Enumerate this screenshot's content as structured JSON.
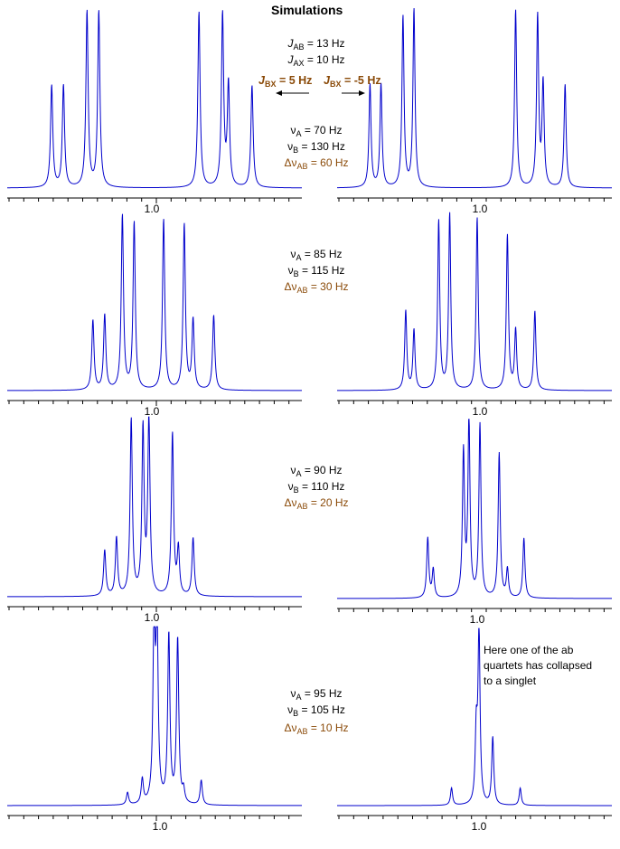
{
  "title": "Simulations",
  "params": {
    "jab": "= 13 Hz",
    "jax": "= 10 Hz",
    "jbx_left": "= 5 Hz",
    "jbx_right": "= -5 Hz"
  },
  "rows": [
    {
      "va": "= 70 Hz",
      "vb": "= 130 Hz",
      "dv": "= 60 Hz"
    },
    {
      "va": "= 85 Hz",
      "vb": "= 115 Hz",
      "dv": "= 30 Hz"
    },
    {
      "va": "= 90 Hz",
      "vb": "= 110 Hz",
      "dv": "= 20 Hz"
    },
    {
      "va": "= 95 Hz",
      "vb": "= 105 Hz",
      "dv": "= 10 Hz"
    }
  ],
  "note": [
    "Here one of the ab",
    "quartets has collapsed",
    "to a singlet"
  ],
  "colors": {
    "trace": "#0000cc",
    "accent": "#8a4a08",
    "axis": "#000000"
  },
  "chart_data": [
    {
      "type": "line",
      "panel": "row1-left",
      "x_tick_label": "1.0",
      "peaks_x": [
        0.66,
        0.7,
        0.78,
        0.82,
        1.16,
        1.24,
        1.26,
        1.34
      ],
      "peaks_h": [
        0.58,
        0.58,
        1.0,
        1.0,
        1.0,
        0.98,
        0.58,
        0.58
      ]
    },
    {
      "type": "line",
      "panel": "row1-right",
      "x_tick_label": "1.0",
      "peaks_x": [
        0.6,
        0.64,
        0.72,
        0.76,
        1.13,
        1.21,
        1.23,
        1.31
      ],
      "peaks_h": [
        0.58,
        0.58,
        0.96,
        1.0,
        1.0,
        0.96,
        0.58,
        0.58
      ]
    },
    {
      "type": "line",
      "panel": "row2-left",
      "x_tick_label": "1.0",
      "peaks_x": [
        0.8,
        0.84,
        0.9,
        0.94,
        1.04,
        1.11,
        1.14,
        1.21
      ],
      "peaks_h": [
        0.4,
        0.43,
        1.0,
        0.96,
        0.98,
        0.95,
        0.4,
        0.43
      ]
    },
    {
      "type": "line",
      "panel": "row2-right",
      "x_tick_label": "1.0",
      "peaks_x": [
        0.73,
        0.76,
        0.85,
        0.89,
        0.99,
        1.1,
        1.13,
        1.2
      ],
      "peaks_h": [
        0.45,
        0.34,
        0.96,
        1.0,
        0.98,
        0.88,
        0.34,
        0.45
      ]
    },
    {
      "type": "line",
      "panel": "row3-left",
      "x_tick_label": "1.0",
      "peaks_x": [
        0.84,
        0.88,
        0.93,
        0.97,
        0.99,
        1.07,
        1.09,
        1.14
      ],
      "peaks_h": [
        0.26,
        0.33,
        1.0,
        0.94,
        1.0,
        0.92,
        0.26,
        0.33
      ]
    },
    {
      "type": "line",
      "panel": "row3-right",
      "x_tick_label": "1.0",
      "peaks_x": [
        0.82,
        0.84,
        0.95,
        0.97,
        1.01,
        1.08,
        1.11,
        1.17
      ],
      "peaks_h": [
        0.34,
        0.16,
        0.82,
        1.0,
        0.98,
        0.82,
        0.16,
        0.34
      ]
    },
    {
      "type": "line",
      "panel": "row4-left",
      "x_tick_label": "1.0",
      "peaks_x": [
        0.89,
        0.94,
        0.98,
        0.99,
        1.03,
        1.06,
        1.08,
        1.14
      ],
      "peaks_h": [
        0.07,
        0.14,
        1.0,
        1.0,
        0.96,
        0.94,
        0.07,
        0.14
      ]
    },
    {
      "type": "line",
      "panel": "row4-right",
      "x_tick_label": "1.0",
      "peaks_x": [
        0.9,
        0.99,
        1.0,
        1.05,
        1.15
      ],
      "peaks_h": [
        0.1,
        0.4,
        1.0,
        0.39,
        0.1
      ]
    }
  ]
}
